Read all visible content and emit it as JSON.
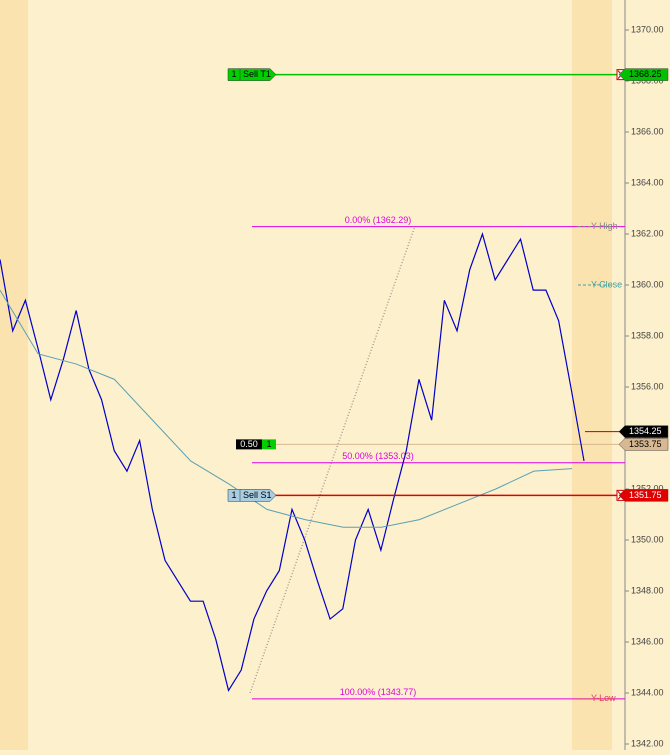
{
  "chart_data": {
    "type": "line",
    "ylim": [
      1342,
      1370
    ],
    "yticks": [
      {
        "value": 1342,
        "label": "1342.00"
      },
      {
        "value": 1344,
        "label": "1344.00"
      },
      {
        "value": 1346,
        "label": "1346.00"
      },
      {
        "value": 1348,
        "label": "1348.00"
      },
      {
        "value": 1350,
        "label": "1350.00"
      },
      {
        "value": 1352,
        "label": "1352.00"
      },
      {
        "value": 1354,
        "label": "1354.00"
      },
      {
        "value": 1356,
        "label": "1356.00"
      },
      {
        "value": 1358,
        "label": "1358.00"
      },
      {
        "value": 1360,
        "label": "1360.00"
      },
      {
        "value": 1362,
        "label": "1362.00"
      },
      {
        "value": 1364,
        "label": "1364.00"
      },
      {
        "value": 1366,
        "label": "1366.00"
      },
      {
        "value": 1368,
        "label": "1368.00"
      },
      {
        "value": 1370,
        "label": "1370.00"
      }
    ],
    "series": [
      {
        "color": "#0000c8",
        "values": [
          1361.0,
          1358.2,
          1359.4,
          1357.5,
          1355.5,
          1357.1,
          1359.0,
          1356.7,
          1355.5,
          1353.5,
          1352.7,
          1353.9,
          1351.2,
          1349.2,
          1348.4,
          1347.6,
          1347.6,
          1346.1,
          1344.1,
          1344.9,
          1346.9,
          1348.0,
          1348.8,
          1351.2,
          1350.0,
          1348.4,
          1346.9,
          1347.3,
          1350.0,
          1351.2,
          1349.6,
          1351.6,
          1353.5,
          1356.3,
          1354.7,
          1359.4,
          1358.2,
          1360.6,
          1362.0,
          1360.2,
          1361.0,
          1361.8,
          1359.8,
          1359.8,
          1358.6,
          1355.9,
          1353.1
        ]
      },
      {
        "color": "#5aa0b4",
        "values": [
          1359.8,
          1357.3,
          1356.9,
          1356.3,
          1354.7,
          1353.1,
          1352.2,
          1351.2,
          1350.8,
          1350.5,
          1350.5,
          1350.8,
          1351.4,
          1352.0,
          1352.7,
          1352.8
        ]
      }
    ],
    "orders": [
      {
        "qty": "1",
        "label": "Sell T1",
        "value": 1368.25,
        "color": "#00c000",
        "box_color": "#00d000"
      },
      {
        "qty": "1",
        "label": "Sell S1",
        "value": 1351.75,
        "color": "#e00000",
        "box_color": "#a8cce0"
      }
    ],
    "fib_levels": [
      {
        "label": "0.00% (1362.29)",
        "value": 1362.29
      },
      {
        "label": "50.00% (1353.03)",
        "value": 1353.03
      },
      {
        "label": "100.00% (1343.77)",
        "value": 1343.77
      }
    ],
    "fib_color": "#e000e0",
    "reference_levels": [
      {
        "label": "Y-High",
        "value": 1362.29,
        "color": "#888888"
      },
      {
        "label": "Y-Close",
        "value": 1360,
        "color": "#40a0a0"
      },
      {
        "label": "Y-Low",
        "value": 1343.77,
        "color": "#e04060"
      }
    ],
    "position": {
      "size": "0.50",
      "qty": "1",
      "value": 1353.75,
      "color": "#d8b890"
    },
    "last_price": 1354.25
  }
}
